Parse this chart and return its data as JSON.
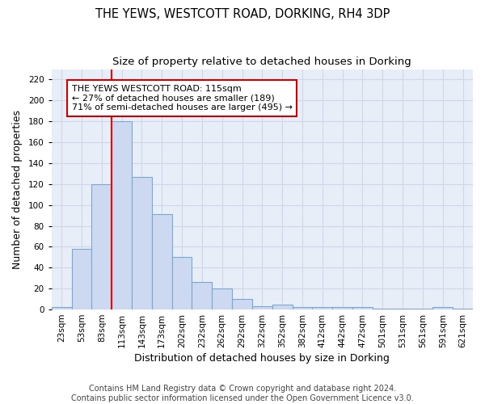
{
  "title": "THE YEWS, WESTCOTT ROAD, DORKING, RH4 3DP",
  "subtitle": "Size of property relative to detached houses in Dorking",
  "xlabel": "Distribution of detached houses by size in Dorking",
  "ylabel": "Number of detached properties",
  "bar_labels": [
    "23sqm",
    "53sqm",
    "83sqm",
    "113sqm",
    "143sqm",
    "173sqm",
    "202sqm",
    "232sqm",
    "262sqm",
    "292sqm",
    "322sqm",
    "352sqm",
    "382sqm",
    "412sqm",
    "442sqm",
    "472sqm",
    "501sqm",
    "531sqm",
    "561sqm",
    "591sqm",
    "621sqm"
  ],
  "bar_values": [
    2,
    58,
    120,
    180,
    127,
    91,
    50,
    26,
    20,
    10,
    3,
    5,
    2,
    2,
    2,
    2,
    1,
    1,
    1,
    2,
    1
  ],
  "bar_color": "#ccd9f0",
  "bar_edge_color": "#7aa8d4",
  "red_line_index": 3,
  "ylim": [
    0,
    230
  ],
  "yticks": [
    0,
    20,
    40,
    60,
    80,
    100,
    120,
    140,
    160,
    180,
    200,
    220
  ],
  "annotation_text": "THE YEWS WESTCOTT ROAD: 115sqm\n← 27% of detached houses are smaller (189)\n71% of semi-detached houses are larger (495) →",
  "annotation_box_color": "white",
  "annotation_box_edge_color": "#cc0000",
  "footnote_line1": "Contains HM Land Registry data © Crown copyright and database right 2024.",
  "footnote_line2": "Contains public sector information licensed under the Open Government Licence v3.0.",
  "background_color": "#e8eef8",
  "grid_color": "#d0d8e8",
  "title_fontsize": 10.5,
  "subtitle_fontsize": 9.5,
  "axis_label_fontsize": 9,
  "tick_fontsize": 7.5,
  "annotation_fontsize": 8,
  "footnote_fontsize": 7
}
